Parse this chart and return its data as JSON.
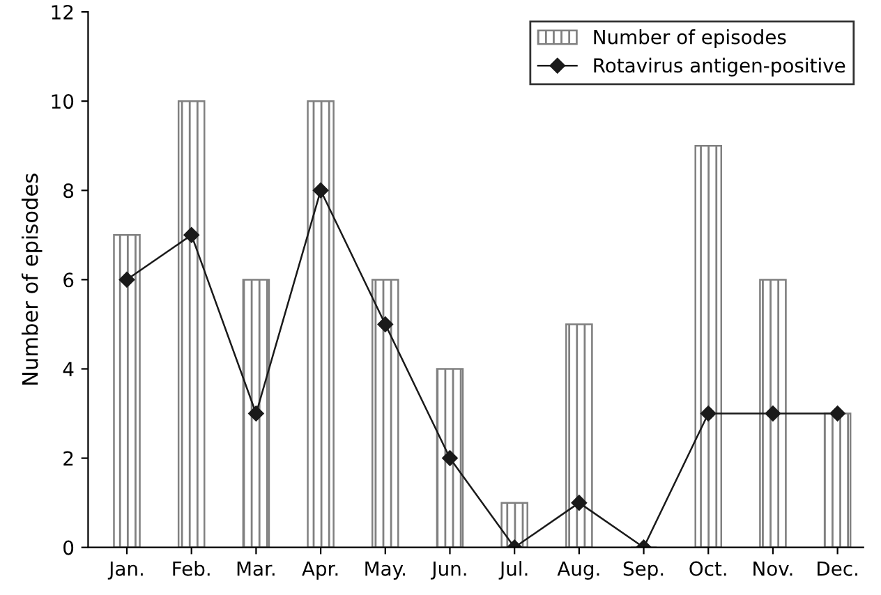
{
  "chart_data": {
    "type": "bar",
    "ylabel": "Number of episodes",
    "categories": [
      "Jan.",
      "Feb.",
      "Mar.",
      "Apr.",
      "May.",
      "Jun.",
      "Jul.",
      "Aug.",
      "Sep.",
      "Oct.",
      "Nov.",
      "Dec."
    ],
    "series": [
      {
        "name": "Number of episodes",
        "color": "#808080",
        "values": [
          7,
          10,
          6,
          10,
          6,
          4,
          1,
          5,
          0,
          9,
          6,
          3
        ]
      },
      {
        "name": "Rotavirus antigen-positive",
        "type": "line",
        "color": "#1a1a1a",
        "marker": "diamond",
        "values": [
          6,
          7,
          3,
          8,
          5,
          2,
          0,
          1,
          0,
          3,
          3,
          3
        ]
      }
    ],
    "ylim": [
      0,
      12
    ],
    "yticks": [
      0,
      2,
      4,
      6,
      8,
      10,
      12
    ],
    "grid": false,
    "legend": "top right"
  }
}
